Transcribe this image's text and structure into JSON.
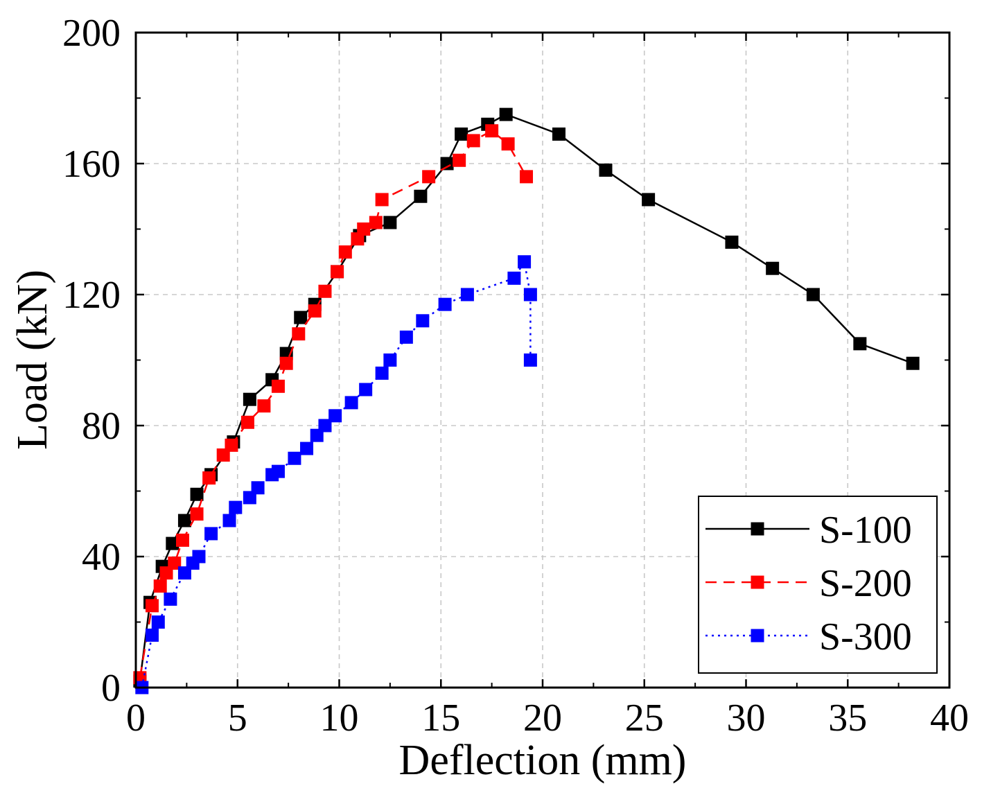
{
  "chart_data": {
    "type": "line",
    "xlabel": "Deflection (mm)",
    "ylabel": "Load (kN)",
    "xlim": [
      0,
      40
    ],
    "ylim": [
      0,
      200
    ],
    "xticks": [
      "0",
      "5",
      "10",
      "15",
      "20",
      "25",
      "30",
      "35",
      "40"
    ],
    "yticks": [
      "0",
      "40",
      "80",
      "120",
      "160",
      "200"
    ],
    "grid": true,
    "legend_position": "bottom-right",
    "series": [
      {
        "name": "S-100",
        "color": "#000000",
        "line_style": "solid",
        "marker": "square",
        "points": [
          [
            0.2,
            2
          ],
          [
            0.7,
            26
          ],
          [
            1.3,
            37
          ],
          [
            1.8,
            44
          ],
          [
            2.4,
            51
          ],
          [
            3.0,
            59
          ],
          [
            3.7,
            65
          ],
          [
            4.8,
            75
          ],
          [
            5.6,
            88
          ],
          [
            6.7,
            94
          ],
          [
            7.4,
            102
          ],
          [
            8.1,
            113
          ],
          [
            8.8,
            117
          ],
          [
            9.9,
            127
          ],
          [
            11.0,
            138
          ],
          [
            12.5,
            142
          ],
          [
            14.0,
            150
          ],
          [
            15.3,
            160
          ],
          [
            16.0,
            169
          ],
          [
            17.3,
            172
          ],
          [
            18.2,
            175
          ],
          [
            20.8,
            169
          ],
          [
            23.1,
            158
          ],
          [
            25.2,
            149
          ],
          [
            29.3,
            136
          ],
          [
            31.3,
            128
          ],
          [
            33.3,
            120
          ],
          [
            35.6,
            105
          ],
          [
            38.2,
            99
          ]
        ]
      },
      {
        "name": "S-200",
        "color": "#ff0000",
        "line_style": "dashed",
        "marker": "square",
        "points": [
          [
            0.2,
            3
          ],
          [
            0.8,
            25
          ],
          [
            1.2,
            31
          ],
          [
            1.5,
            35
          ],
          [
            1.9,
            38
          ],
          [
            2.3,
            45
          ],
          [
            3.0,
            53
          ],
          [
            3.6,
            64
          ],
          [
            4.3,
            71
          ],
          [
            4.7,
            74
          ],
          [
            5.5,
            81
          ],
          [
            6.3,
            86
          ],
          [
            7.0,
            92
          ],
          [
            7.4,
            99
          ],
          [
            8.0,
            108
          ],
          [
            8.8,
            115
          ],
          [
            9.3,
            121
          ],
          [
            9.9,
            127
          ],
          [
            10.3,
            133
          ],
          [
            10.9,
            137
          ],
          [
            11.2,
            140
          ],
          [
            11.8,
            142
          ],
          [
            12.1,
            149
          ],
          [
            14.4,
            156
          ],
          [
            15.9,
            161
          ],
          [
            16.6,
            167
          ],
          [
            17.5,
            170
          ],
          [
            18.3,
            166
          ],
          [
            19.2,
            156
          ]
        ]
      },
      {
        "name": "S-300",
        "color": "#0000ff",
        "line_style": "dotted",
        "marker": "square",
        "points": [
          [
            0.3,
            0
          ],
          [
            0.8,
            16
          ],
          [
            1.1,
            20
          ],
          [
            1.7,
            27
          ],
          [
            2.4,
            35
          ],
          [
            2.8,
            38
          ],
          [
            3.1,
            40
          ],
          [
            3.7,
            47
          ],
          [
            4.6,
            51
          ],
          [
            4.9,
            55
          ],
          [
            5.6,
            58
          ],
          [
            6.0,
            61
          ],
          [
            6.7,
            65
          ],
          [
            7.0,
            66
          ],
          [
            7.8,
            70
          ],
          [
            8.4,
            73
          ],
          [
            8.9,
            77
          ],
          [
            9.3,
            80
          ],
          [
            9.8,
            83
          ],
          [
            10.6,
            87
          ],
          [
            11.3,
            91
          ],
          [
            12.1,
            96
          ],
          [
            12.5,
            100
          ],
          [
            13.3,
            107
          ],
          [
            14.1,
            112
          ],
          [
            15.2,
            117
          ],
          [
            16.3,
            120
          ],
          [
            18.6,
            125
          ],
          [
            19.1,
            130
          ],
          [
            19.4,
            120
          ],
          [
            19.4,
            100
          ]
        ]
      }
    ]
  }
}
